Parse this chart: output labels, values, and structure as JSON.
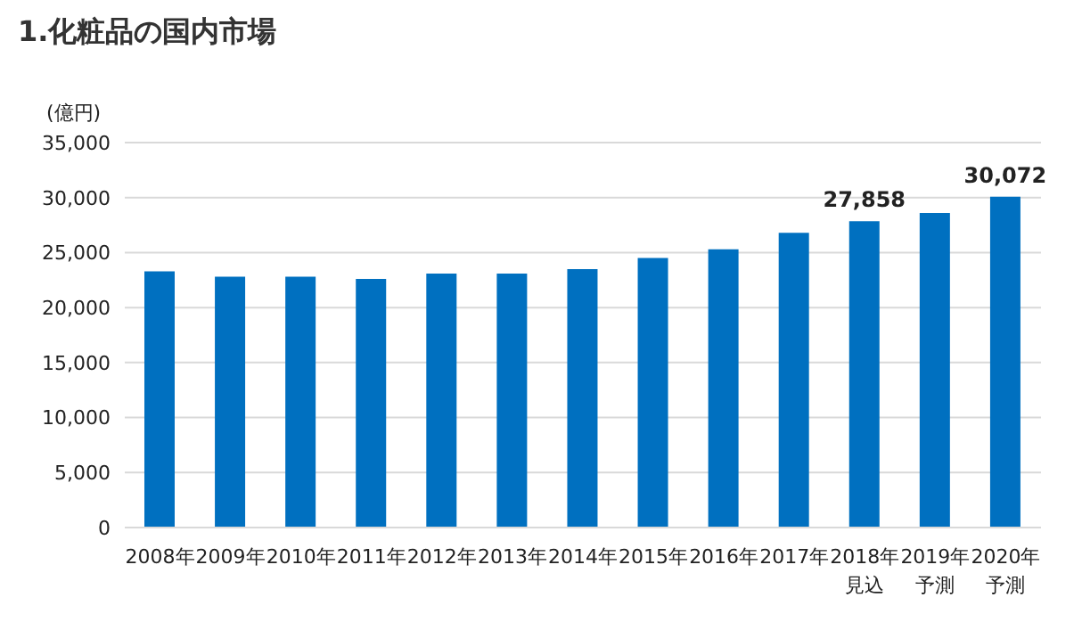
{
  "chart_data": {
    "type": "bar",
    "title": "1.化粧品の国内市場",
    "ylabel": "(億円)",
    "categories": [
      "2008年",
      "2009年",
      "2010年",
      "2011年",
      "2012年",
      "2013年",
      "2014年",
      "2015年",
      "2016年",
      "2017年",
      "2018年見込",
      "2019年予測",
      "2020年予測"
    ],
    "values": [
      23300,
      22800,
      22800,
      22600,
      23100,
      23100,
      23500,
      24500,
      25300,
      26800,
      27858,
      28600,
      30072
    ],
    "value_labels": [
      null,
      null,
      null,
      null,
      null,
      null,
      null,
      null,
      null,
      null,
      "27,858",
      null,
      "30,072"
    ],
    "color": "#0070c0",
    "ylim": [
      0,
      35000
    ],
    "yticks": [
      0,
      {
        "value": 5000,
        "label": "5,000"
      },
      {
        "value": 10000,
        "label": "10,000"
      },
      {
        "value": 15000,
        "label": "15,000"
      },
      {
        "value": 20000,
        "label": "20,000"
      },
      {
        "value": 25000,
        "label": "25,000"
      },
      {
        "value": 30000,
        "label": "30,000"
      },
      {
        "value": 35000,
        "label": "35,000"
      }
    ],
    "grid": "y"
  }
}
